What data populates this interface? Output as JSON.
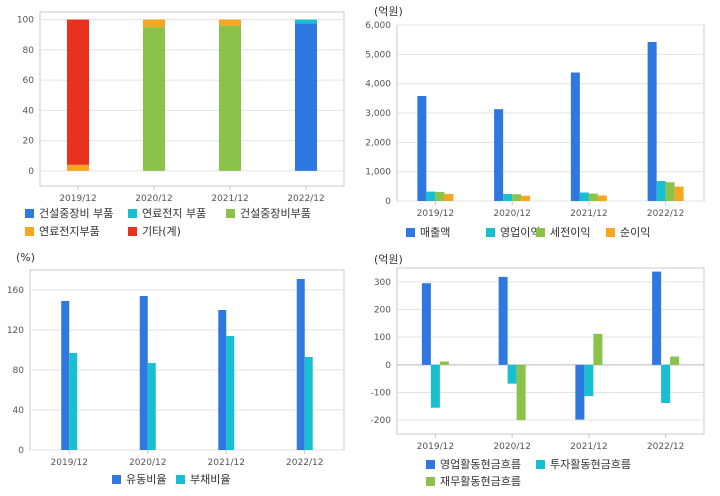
{
  "colors": {
    "blue": "#2e78e0",
    "cyan": "#17bfd0",
    "green": "#8bc34a",
    "orange": "#f5a623",
    "red": "#e8321e",
    "grid": "#e3e3e3",
    "axis": "#c8c8c8"
  },
  "chart_data": [
    {
      "type": "bar",
      "stacked": true,
      "title": "",
      "categories": [
        "2019/12",
        "2020/12",
        "2021/12",
        "2022/12"
      ],
      "ylim": [
        -10,
        105
      ],
      "yticks": [
        0,
        20,
        40,
        60,
        80,
        100
      ],
      "grid": true,
      "legend_position": "bottom",
      "legend": [
        "건설중장비 부품",
        "연료전지 부품",
        "건설중장비부품",
        "연료전지부품",
        "기타(계)"
      ],
      "series": [
        {
          "name": "건설중장비 부품",
          "color": "blue",
          "values": [
            0,
            0,
            0,
            97.5
          ]
        },
        {
          "name": "연료전지 부품",
          "color": "cyan",
          "values": [
            0,
            0,
            0,
            2.5
          ]
        },
        {
          "name": "건설중장비부품",
          "color": "green",
          "values": [
            0,
            95,
            96,
            0
          ]
        },
        {
          "name": "연료전지부품",
          "color": "orange",
          "values": [
            4,
            5,
            4,
            0
          ]
        },
        {
          "name": "기타(계)",
          "color": "red",
          "values": [
            96,
            0,
            0,
            0
          ]
        }
      ]
    },
    {
      "type": "bar",
      "unit": "(억원)",
      "categories": [
        "2019/12",
        "2020/12",
        "2021/12",
        "2022/12"
      ],
      "ylim": [
        0,
        6000
      ],
      "yticks": [
        0,
        1000,
        2000,
        3000,
        4000,
        5000,
        6000
      ],
      "ytick_labels": [
        "0",
        "1,000",
        "2,000",
        "3,000",
        "4,000",
        "5,000",
        "6,000"
      ],
      "grid": true,
      "legend_position": "bottom",
      "series": [
        {
          "name": "매출액",
          "color": "blue",
          "values": [
            3580,
            3130,
            4380,
            5420
          ]
        },
        {
          "name": "영업이익",
          "color": "cyan",
          "values": [
            320,
            240,
            290,
            680
          ]
        },
        {
          "name": "세전이익",
          "color": "green",
          "values": [
            310,
            230,
            250,
            640
          ]
        },
        {
          "name": "순이익",
          "color": "orange",
          "values": [
            240,
            180,
            190,
            490
          ]
        }
      ]
    },
    {
      "type": "bar",
      "unit": "(%)",
      "categories": [
        "2019/12",
        "2020/12",
        "2021/12",
        "2022/12"
      ],
      "ylim": [
        0,
        180
      ],
      "yticks": [
        0,
        40,
        80,
        120,
        160
      ],
      "grid": true,
      "legend_position": "bottom",
      "series": [
        {
          "name": "유동비율",
          "color": "blue",
          "values": [
            149,
            154,
            140,
            171
          ]
        },
        {
          "name": "부채비율",
          "color": "cyan",
          "values": [
            97,
            87,
            114,
            93
          ]
        }
      ]
    },
    {
      "type": "bar",
      "unit": "(억원)",
      "categories": [
        "2019/12",
        "2020/12",
        "2021/12",
        "2022/12"
      ],
      "ylim": [
        -250,
        350
      ],
      "yticks": [
        -200,
        -100,
        0,
        100,
        200,
        300
      ],
      "grid": true,
      "legend_position": "bottom",
      "series": [
        {
          "name": "영업활동현금흐름",
          "color": "blue",
          "values": [
            295,
            318,
            -198,
            337
          ]
        },
        {
          "name": "투자활동현금흐름",
          "color": "cyan",
          "values": [
            -155,
            -68,
            -113,
            -138
          ]
        },
        {
          "name": "재무활동현금흐름",
          "color": "green",
          "values": [
            12,
            -200,
            112,
            30
          ]
        }
      ]
    }
  ]
}
